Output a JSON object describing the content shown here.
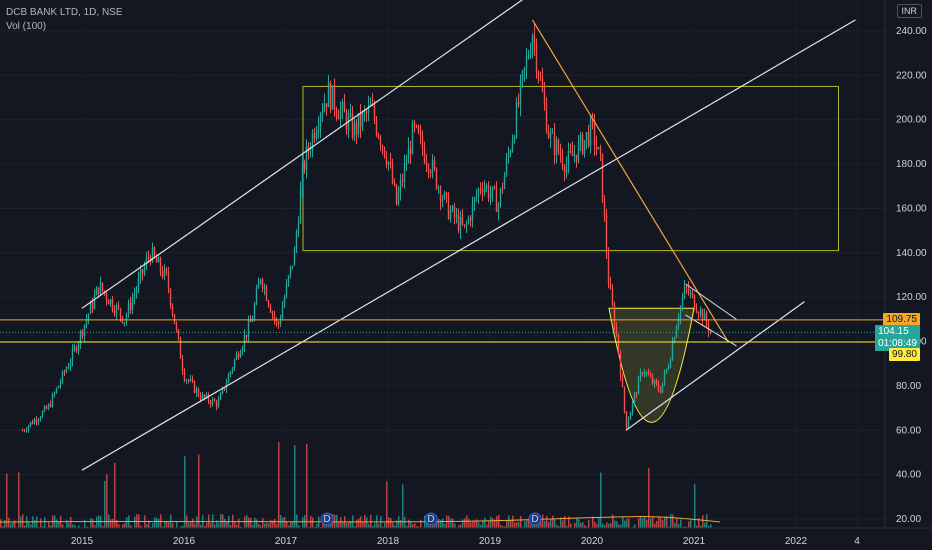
{
  "header": {
    "symbol_line": "DCB BANK LTD, 1D, NSE",
    "volume_line": "Vol (100)",
    "currency": "INR"
  },
  "colors": {
    "background": "#131722",
    "up": "#26a69a",
    "down": "#ef5350",
    "trend_white": "#e0e3eb",
    "trend_orange": "#f2a33a",
    "box_yellow": "#b5b52a",
    "level_orange": "#f5a623",
    "level_yellow": "#ffeb3b",
    "cup_fill": "#5b5f2b"
  },
  "price_tags": {
    "upper": "109.75",
    "current": "104.15",
    "countdown": "01:08:49",
    "lower": "99.80"
  },
  "events": [
    "D",
    "D",
    "D"
  ],
  "chart_data": {
    "type": "candlestick",
    "title": "DCB BANK LTD, 1D, NSE",
    "x_ticks": [
      "2015",
      "2016",
      "2017",
      "2018",
      "2019",
      "2020",
      "2021",
      "2022",
      "4"
    ],
    "y_ticks": [
      "240.00",
      "220.00",
      "200.00",
      "180.00",
      "160.00",
      "140.00",
      "120.00",
      "100.00",
      "80.00",
      "60.00",
      "40.00",
      "20.00"
    ],
    "y_range": [
      20,
      250
    ],
    "price_path": [
      [
        "2014-06",
        60
      ],
      [
        "2014-09",
        70
      ],
      [
        "2014-12",
        95
      ],
      [
        "2015-03",
        125
      ],
      [
        "2015-06",
        110
      ],
      [
        "2015-09",
        140
      ],
      [
        "2015-11",
        128
      ],
      [
        "2016-01",
        85
      ],
      [
        "2016-03",
        75
      ],
      [
        "2016-05",
        72
      ],
      [
        "2016-07",
        92
      ],
      [
        "2016-09",
        110
      ],
      [
        "2016-10",
        130
      ],
      [
        "2016-12",
        106
      ],
      [
        "2017-02",
        140
      ],
      [
        "2017-03",
        178
      ],
      [
        "2017-05",
        205
      ],
      [
        "2017-06",
        212
      ],
      [
        "2017-09",
        195
      ],
      [
        "2017-11",
        205
      ],
      [
        "2018-01",
        182
      ],
      [
        "2018-02",
        162
      ],
      [
        "2018-04",
        195
      ],
      [
        "2018-06",
        180
      ],
      [
        "2018-08",
        160
      ],
      [
        "2018-10",
        150
      ],
      [
        "2018-12",
        172
      ],
      [
        "2019-02",
        162
      ],
      [
        "2019-04",
        200
      ],
      [
        "2019-06",
        240
      ],
      [
        "2019-07",
        215
      ],
      [
        "2019-08",
        192
      ],
      [
        "2019-10",
        180
      ],
      [
        "2019-12",
        190
      ],
      [
        "2020-01",
        196
      ],
      [
        "2020-02",
        180
      ],
      [
        "2020-03",
        125
      ],
      [
        "2020-04",
        100
      ],
      [
        "2020-05",
        62
      ],
      [
        "2020-06",
        75
      ],
      [
        "2020-07",
        88
      ],
      [
        "2020-08",
        82
      ],
      [
        "2020-09",
        78
      ],
      [
        "2020-10",
        90
      ],
      [
        "2020-11",
        110
      ],
      [
        "2020-12",
        124
      ],
      [
        "2021-01",
        118
      ],
      [
        "2021-02",
        112
      ],
      [
        "2021-03",
        104
      ]
    ],
    "levels": [
      109.75,
      99.8
    ],
    "box": {
      "from": "2017-03",
      "to": "2022-06",
      "high": 215,
      "low": 141
    },
    "trendlines": [
      {
        "name": "upper-channel",
        "from": [
          "2015-01",
          115
        ],
        "to": [
          "2019-10",
          268
        ]
      },
      {
        "name": "lower-channel",
        "from": [
          "2015-01",
          42
        ],
        "to": [
          "2022-08",
          245
        ]
      },
      {
        "name": "descending-resistance",
        "from": [
          "2019-06",
          245
        ],
        "to": [
          "2021-05",
          100
        ]
      },
      {
        "name": "cup-support",
        "from": [
          "2020-05",
          60
        ],
        "to": [
          "2022-02",
          118
        ]
      }
    ]
  }
}
